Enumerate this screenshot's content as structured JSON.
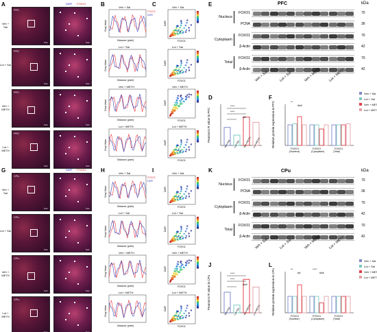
{
  "panels": {
    "A": "A",
    "B": "B",
    "C": "C",
    "D": "D",
    "E": "E",
    "F": "F",
    "G": "G",
    "H": "H",
    "I": "I",
    "J": "J",
    "K": "K",
    "L": "L"
  },
  "groups": [
    "Veh + Sal",
    "Lut + Sal",
    "Veh + METH",
    "Lut + METH"
  ],
  "groups_short": [
    "Veh+Sal",
    "Lut+Sal",
    "Veh+METH",
    "Lut+METH"
  ],
  "region_top": "PFC",
  "region_bottom": "CPu",
  "if_channels": [
    "FOXO1",
    "DAPI"
  ],
  "scalebar": "5um",
  "profile": {
    "xlabel": "Distance (pixel)",
    "ylabel": "Gray Value",
    "legend": [
      "FOXO1",
      "DAPI"
    ],
    "colors": {
      "foxo1": "#e6323c",
      "dapi": "#2f3fb8"
    }
  },
  "coloc": {
    "xlabel": "FOXO1",
    "ylabel": "DAPI"
  },
  "wb": {
    "top_title": "PFC",
    "bottom_title": "CPu",
    "kda_header": "kDa",
    "fractions": [
      "Nucleus",
      "Cytoplasm",
      "Total"
    ],
    "proteins": [
      "FOXO1",
      "PCNA",
      "FOXO1",
      "β-Actin",
      "FOXO1",
      "β-Actin"
    ],
    "kda": [
      "70",
      "36",
      "70",
      "42",
      "70",
      "42"
    ]
  },
  "pearson": {
    "ylabel_top": "Pearson's R value in PFC",
    "ylabel_bottom": "Pearson's R value in CPu",
    "sig": [
      "****",
      "****",
      "##"
    ],
    "sig_bottom": [
      "****",
      "****",
      "###"
    ]
  },
  "relexp": {
    "ylabel_top": "Relative protein expression in PFC",
    "ylabel_bottom": "Relative protein expression in CPu",
    "categories": [
      "FOXO1 (Nucleus)",
      "FOXO1 (Cytoplasm)",
      "FOXO1 (Total)"
    ],
    "sig_top": [
      "**",
      "###"
    ],
    "sig_bottom": [
      "**",
      "##",
      "****",
      "###"
    ],
    "colors": {
      "veh_sal": "#7d87c9",
      "lut_sal": "#7ec8c0",
      "veh_meth": "#e0404a",
      "lut_meth": "#e2a2a8"
    }
  },
  "chart_data": [
    {
      "type": "bar",
      "title": "",
      "categories": [
        "Veh+Sal",
        "Lut+Sal",
        "Veh+METH",
        "Lut+METH"
      ],
      "values": [
        0.35,
        0.2,
        0.55,
        0.45
      ],
      "ylabel": "Pearson's R value in PFC",
      "ylim": [
        0,
        0.8
      ]
    },
    {
      "type": "bar",
      "title": "",
      "categories": [
        "FOXO1 (Nucleus)",
        "FOXO1 (Cytoplasm)",
        "FOXO1 (Total)"
      ],
      "series": [
        {
          "name": "Veh + Sal",
          "values": [
            1.0,
            1.0,
            1.0
          ]
        },
        {
          "name": "Lut + Sal",
          "values": [
            1.05,
            1.0,
            1.0
          ]
        },
        {
          "name": "Veh + METH",
          "values": [
            1.4,
            0.8,
            1.0
          ]
        },
        {
          "name": "Lut + METH",
          "values": [
            1.0,
            1.0,
            1.05
          ]
        }
      ],
      "ylabel": "Relative protein expression in PFC",
      "ylim": [
        0,
        2
      ]
    },
    {
      "type": "bar",
      "title": "",
      "categories": [
        "Veh+Sal",
        "Lut+Sal",
        "Veh+METH",
        "Lut+METH"
      ],
      "values": [
        0.4,
        0.15,
        0.65,
        0.5
      ],
      "ylabel": "Pearson's R value in CPu",
      "ylim": [
        0,
        0.8
      ]
    },
    {
      "type": "bar",
      "title": "",
      "categories": [
        "FOXO1 (Nuclear)",
        "FOXO1 (Cytoplasm)",
        "FOXO1 (Total)"
      ],
      "series": [
        {
          "name": "Veh + Sal",
          "values": [
            1.0,
            1.0,
            1.0
          ]
        },
        {
          "name": "Lut + Sal",
          "values": [
            1.0,
            1.0,
            1.0
          ]
        },
        {
          "name": "Veh + METH",
          "values": [
            1.7,
            0.6,
            1.0
          ]
        },
        {
          "name": "Lut + METH",
          "values": [
            1.0,
            1.0,
            1.0
          ]
        }
      ],
      "ylabel": "Relative protein expression in CPu",
      "ylim": [
        0,
        2.5
      ]
    }
  ]
}
